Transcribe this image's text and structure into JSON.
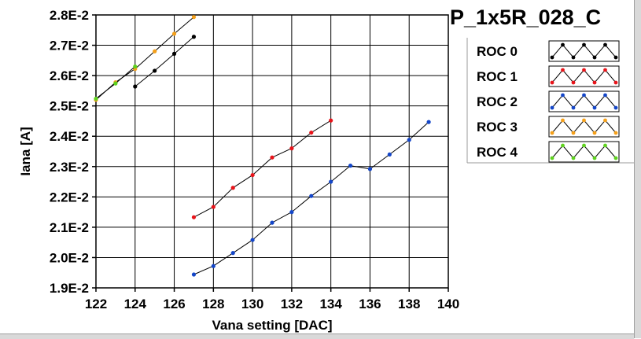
{
  "chart_data": {
    "type": "line",
    "title": "P_1x5R_028_C",
    "xlabel": "Vana setting [DAC]",
    "ylabel": "Iana [A]",
    "xlim": [
      122,
      140
    ],
    "ylim": [
      0.019,
      0.028
    ],
    "x_ticks": [
      122,
      124,
      126,
      128,
      130,
      132,
      134,
      136,
      138,
      140
    ],
    "x_tick_labels": [
      "122",
      "124",
      "126",
      "128",
      "130",
      "132",
      "134",
      "136",
      "138",
      "140"
    ],
    "y_ticks": [
      0.019,
      0.02,
      0.021,
      0.022,
      0.023,
      0.024,
      0.025,
      0.026,
      0.027,
      0.028
    ],
    "y_tick_labels": [
      "1.9E-2",
      "2.0E-2",
      "2.1E-2",
      "2.2E-2",
      "2.3E-2",
      "2.4E-2",
      "2.5E-2",
      "2.6E-2",
      "2.7E-2",
      "2.8E-2"
    ],
    "grid": true,
    "legend_position": "right",
    "series": [
      {
        "name": "ROC 0",
        "color": "#000000",
        "x": [
          124,
          125,
          126,
          127
        ],
        "y": [
          0.02564,
          0.02616,
          0.02672,
          0.02728
        ]
      },
      {
        "name": "ROC 1",
        "color": "#e8141a",
        "x": [
          127,
          128,
          129,
          130,
          131,
          132,
          133,
          134
        ],
        "y": [
          0.02133,
          0.02167,
          0.0223,
          0.02272,
          0.0233,
          0.0236,
          0.02412,
          0.02452
        ]
      },
      {
        "name": "ROC 2",
        "color": "#1446c8",
        "x": [
          127,
          128,
          129,
          130,
          131,
          132,
          133,
          134,
          135,
          136,
          137,
          138,
          139
        ],
        "y": [
          0.01944,
          0.01972,
          0.02015,
          0.02058,
          0.02115,
          0.0215,
          0.02203,
          0.0225,
          0.02303,
          0.02292,
          0.0234,
          0.02388,
          0.02447
        ]
      },
      {
        "name": "ROC 3",
        "color": "#f5a01a",
        "x": [
          122,
          123,
          124,
          125,
          126,
          127
        ],
        "y": [
          0.0252,
          0.02578,
          0.02622,
          0.0268,
          0.02738,
          0.02793
        ]
      },
      {
        "name": "ROC 4",
        "color": "#5ed21e",
        "x": [
          122,
          123,
          124
        ],
        "y": [
          0.02524,
          0.02574,
          0.0263
        ]
      }
    ]
  }
}
